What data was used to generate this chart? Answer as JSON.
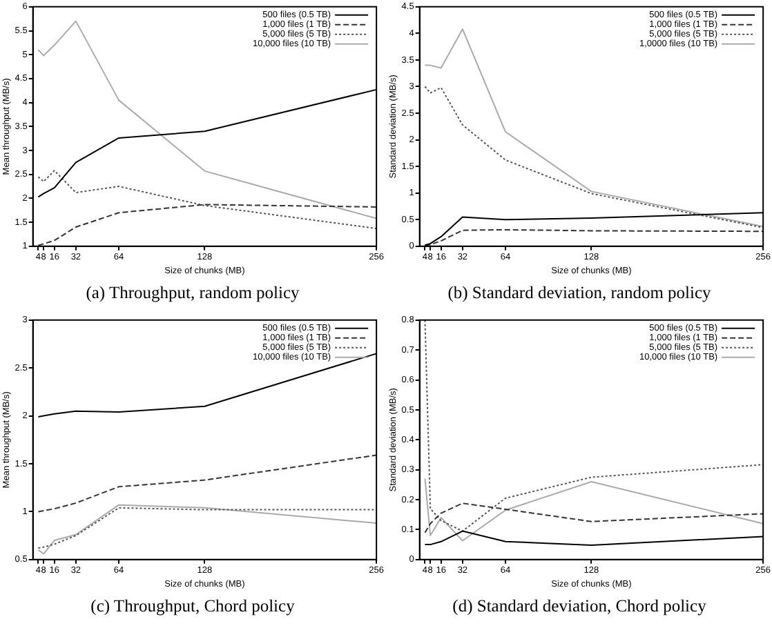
{
  "chart_data": [
    {
      "type": "line",
      "title": "(a) Throughput, random policy",
      "xlabel": "Size of chunks (MB)",
      "ylabel": "Mean throughput (MB/s)",
      "x": [
        4,
        8,
        16,
        32,
        64,
        128,
        256
      ],
      "xlim": [
        0,
        256
      ],
      "xticks": [
        4,
        8,
        16,
        32,
        64,
        128,
        256
      ],
      "ylim": [
        1,
        6
      ],
      "yticks": [
        1,
        1.5,
        2,
        2.5,
        3,
        3.5,
        4,
        4.5,
        5,
        5.5,
        6
      ],
      "grid": false,
      "legend": "top right",
      "marker": "none",
      "series": [
        {
          "name": "500 files (0.5 TB)",
          "color": "#000000",
          "line_style": "solid",
          "values": [
            2.03,
            2.1,
            2.22,
            2.75,
            3.26,
            3.4,
            4.27
          ]
        },
        {
          "name": "1,000 files (1 TB)",
          "color": "#333333",
          "line_style": "dashed",
          "values": [
            1.02,
            1.05,
            1.12,
            1.4,
            1.7,
            1.87,
            1.82
          ]
        },
        {
          "name": "5,000 files (5 TB)",
          "color": "#555555",
          "line_style": "dotted",
          "values": [
            2.45,
            2.35,
            2.58,
            2.12,
            2.25,
            1.85,
            1.37
          ]
        },
        {
          "name": "10,000 files (10 TB)",
          "color": "#aaaaaa",
          "line_style": "solid",
          "values": [
            5.1,
            4.98,
            5.2,
            5.7,
            4.05,
            2.57,
            1.58
          ]
        }
      ]
    },
    {
      "type": "line",
      "title": "(b) Standard deviation, random policy",
      "xlabel": "Size of chunks (MB)",
      "ylabel": "Standard deviation (MB/s)",
      "x": [
        4,
        8,
        16,
        32,
        64,
        128,
        256
      ],
      "xlim": [
        0,
        256
      ],
      "xticks": [
        4,
        8,
        16,
        32,
        64,
        128,
        256
      ],
      "ylim": [
        0,
        4.5
      ],
      "yticks": [
        0,
        0.5,
        1,
        1.5,
        2,
        2.5,
        3,
        3.5,
        4,
        4.5
      ],
      "grid": false,
      "legend": "top right",
      "marker": "none",
      "series": [
        {
          "name": "500 files (0.5 TB)",
          "color": "#000000",
          "line_style": "solid",
          "values": [
            0.02,
            0.05,
            0.18,
            0.55,
            0.5,
            0.53,
            0.63
          ]
        },
        {
          "name": "1,000 files (1 TB)",
          "color": "#333333",
          "line_style": "dashed",
          "values": [
            0.01,
            0.03,
            0.1,
            0.3,
            0.31,
            0.29,
            0.28
          ]
        },
        {
          "name": "5,000 files (5 TB)",
          "color": "#555555",
          "line_style": "dotted",
          "values": [
            3.0,
            2.88,
            2.98,
            2.28,
            1.62,
            0.99,
            0.35
          ]
        },
        {
          "name": "1,0000 files (10 TB)",
          "color": "#aaaaaa",
          "line_style": "solid",
          "values": [
            3.4,
            3.4,
            3.35,
            4.08,
            2.15,
            1.03,
            0.37
          ]
        }
      ]
    },
    {
      "type": "line",
      "title": "(c) Throughput, Chord policy",
      "xlabel": "Size of chunks (MB)",
      "ylabel": "Mean throughput (MB/s)",
      "x": [
        4,
        8,
        16,
        32,
        64,
        128,
        256
      ],
      "xlim": [
        0,
        256
      ],
      "xticks": [
        4,
        8,
        16,
        32,
        64,
        128,
        256
      ],
      "ylim": [
        0.5,
        3
      ],
      "yticks": [
        0.5,
        1,
        1.5,
        2,
        2.5,
        3
      ],
      "grid": false,
      "legend": "top right",
      "marker": "none",
      "series": [
        {
          "name": "500 files (0.5 TB)",
          "color": "#000000",
          "line_style": "solid",
          "values": [
            1.99,
            2.0,
            2.02,
            2.05,
            2.04,
            2.1,
            2.65
          ]
        },
        {
          "name": "1,000 files (1 TB)",
          "color": "#333333",
          "line_style": "dashed",
          "values": [
            1.0,
            1.01,
            1.03,
            1.09,
            1.26,
            1.33,
            1.59
          ]
        },
        {
          "name": "5,000 files (5 TB)",
          "color": "#555555",
          "line_style": "dotted",
          "values": [
            0.62,
            0.63,
            0.66,
            0.75,
            1.04,
            1.02,
            1.02
          ]
        },
        {
          "name": "10,000 files (10 TB)",
          "color": "#aaaaaa",
          "line_style": "solid",
          "values": [
            0.6,
            0.56,
            0.7,
            0.76,
            1.07,
            1.04,
            0.88
          ]
        }
      ]
    },
    {
      "type": "line",
      "title": "(d) Standard deviation, Chord policy",
      "xlabel": "Size of chunks (MB)",
      "ylabel": "Standard deviation (MB/s)",
      "x": [
        4,
        8,
        16,
        32,
        64,
        128,
        256
      ],
      "xlim": [
        0,
        256
      ],
      "xticks": [
        4,
        8,
        16,
        32,
        64,
        128,
        256
      ],
      "ylim": [
        0,
        0.8
      ],
      "yticks": [
        0,
        0.1,
        0.2,
        0.3,
        0.4,
        0.5,
        0.6,
        0.7,
        0.8
      ],
      "grid": false,
      "legend": "top right",
      "marker": "none",
      "series": [
        {
          "name": "500 files (0.5 TB)",
          "color": "#000000",
          "line_style": "solid",
          "values": [
            0.05,
            0.05,
            0.06,
            0.095,
            0.06,
            0.048,
            0.077
          ]
        },
        {
          "name": "1,000 files (1 TB)",
          "color": "#333333",
          "line_style": "dashed",
          "values": [
            0.09,
            0.12,
            0.155,
            0.188,
            0.168,
            0.127,
            0.153
          ]
        },
        {
          "name": "5,000 files (5 TB)",
          "color": "#555555",
          "line_style": "dotted",
          "values": [
            0.8,
            0.17,
            0.13,
            0.095,
            0.205,
            0.275,
            0.317
          ]
        },
        {
          "name": "10,000 files (10 TB)",
          "color": "#aaaaaa",
          "line_style": "solid",
          "values": [
            0.27,
            0.08,
            0.14,
            0.063,
            0.165,
            0.26,
            0.12
          ]
        }
      ]
    }
  ]
}
